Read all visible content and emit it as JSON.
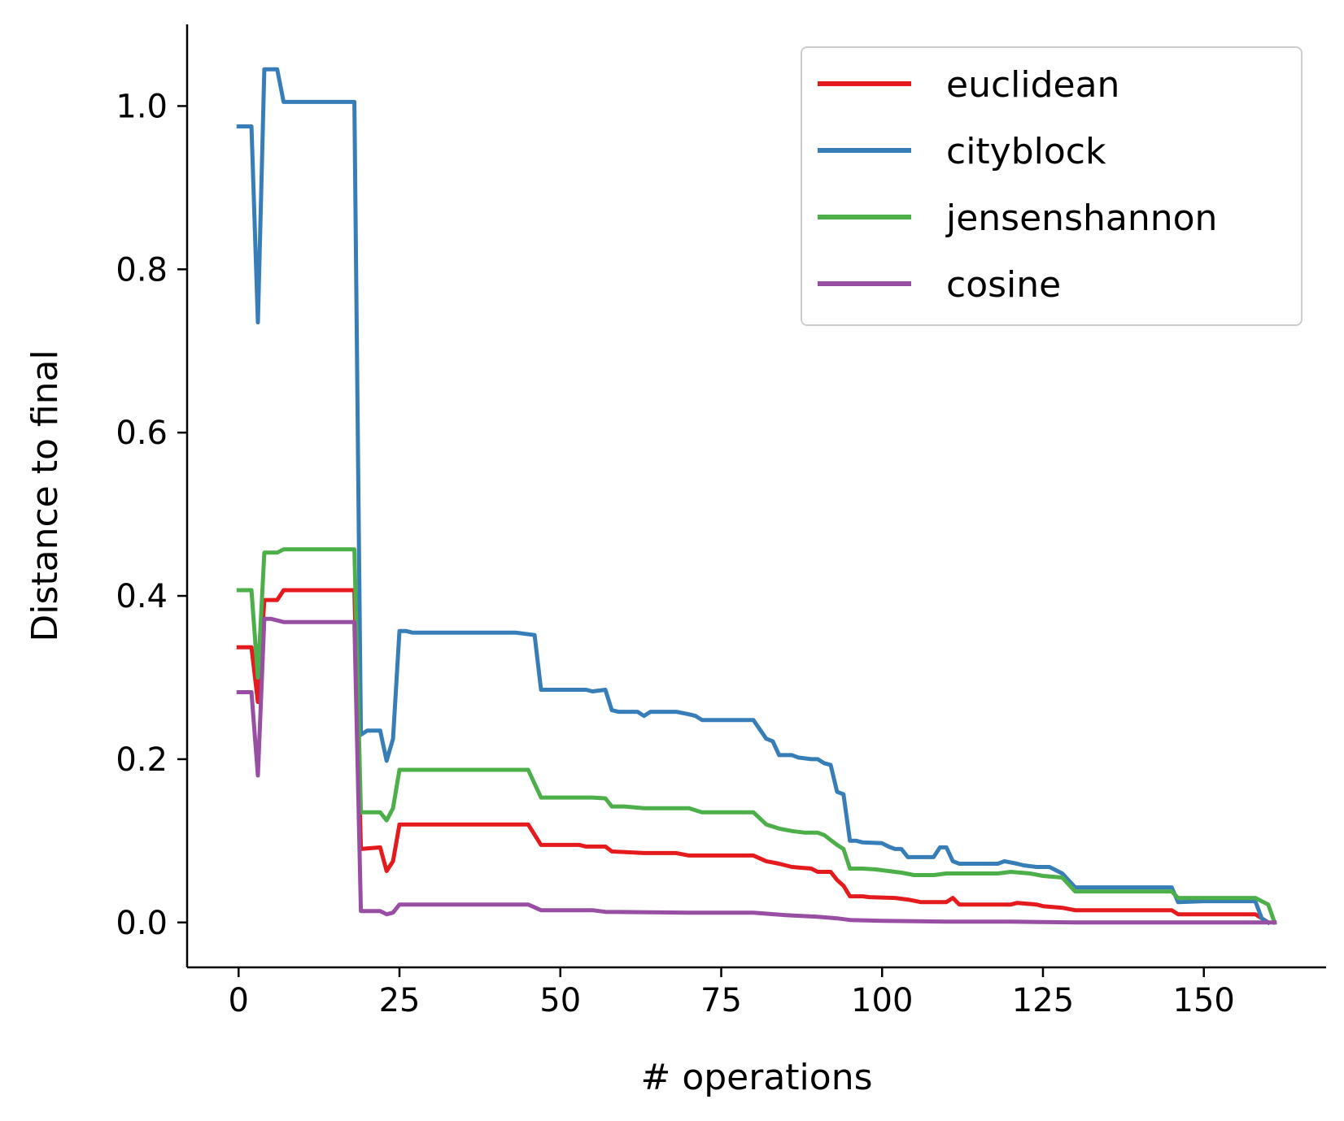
{
  "chart_data": {
    "type": "line",
    "title": "",
    "xlabel": "# operations",
    "ylabel": "Distance to final",
    "xlim": [
      -8,
      169
    ],
    "ylim": [
      -0.055,
      1.1
    ],
    "xticks": [
      0,
      25,
      50,
      75,
      100,
      125,
      150
    ],
    "yticks": [
      0.0,
      0.2,
      0.4,
      0.6,
      0.8,
      1.0
    ],
    "xtick_labels": [
      "0",
      "25",
      "50",
      "75",
      "100",
      "125",
      "150"
    ],
    "ytick_labels": [
      "0.0",
      "0.2",
      "0.4",
      "0.6",
      "0.8",
      "1.0"
    ],
    "legend_position": "top-right",
    "grid": false,
    "series": [
      {
        "name": "euclidean",
        "color": "#e41a1c",
        "points": [
          [
            0,
            0.337
          ],
          [
            2,
            0.337
          ],
          [
            3,
            0.27
          ],
          [
            4,
            0.395
          ],
          [
            6,
            0.395
          ],
          [
            7,
            0.407
          ],
          [
            18,
            0.407
          ],
          [
            19,
            0.09
          ],
          [
            22,
            0.092
          ],
          [
            23,
            0.063
          ],
          [
            24,
            0.075
          ],
          [
            25,
            0.12
          ],
          [
            45,
            0.12
          ],
          [
            47,
            0.095
          ],
          [
            53,
            0.095
          ],
          [
            54,
            0.093
          ],
          [
            57,
            0.093
          ],
          [
            58,
            0.087
          ],
          [
            63,
            0.085
          ],
          [
            68,
            0.085
          ],
          [
            70,
            0.082
          ],
          [
            80,
            0.082
          ],
          [
            82,
            0.075
          ],
          [
            84,
            0.072
          ],
          [
            86,
            0.068
          ],
          [
            89,
            0.066
          ],
          [
            90,
            0.062
          ],
          [
            92,
            0.062
          ],
          [
            93,
            0.052
          ],
          [
            94,
            0.045
          ],
          [
            95,
            0.032
          ],
          [
            97,
            0.032
          ],
          [
            98,
            0.031
          ],
          [
            102,
            0.03
          ],
          [
            104,
            0.028
          ],
          [
            106,
            0.025
          ],
          [
            110,
            0.025
          ],
          [
            111,
            0.03
          ],
          [
            112,
            0.022
          ],
          [
            120,
            0.022
          ],
          [
            121,
            0.024
          ],
          [
            124,
            0.022
          ],
          [
            125,
            0.02
          ],
          [
            128,
            0.018
          ],
          [
            130,
            0.015
          ],
          [
            145,
            0.015
          ],
          [
            146,
            0.01
          ],
          [
            150,
            0.01
          ],
          [
            152,
            0.01
          ],
          [
            158,
            0.01
          ],
          [
            159,
            0.005
          ],
          [
            160,
            0.0
          ]
        ]
      },
      {
        "name": "cityblock",
        "color": "#377eb8",
        "points": [
          [
            0,
            0.975
          ],
          [
            2,
            0.975
          ],
          [
            3,
            0.735
          ],
          [
            4,
            1.045
          ],
          [
            6,
            1.045
          ],
          [
            7,
            1.005
          ],
          [
            18,
            1.005
          ],
          [
            19,
            0.23
          ],
          [
            20,
            0.235
          ],
          [
            22,
            0.235
          ],
          [
            23,
            0.198
          ],
          [
            24,
            0.225
          ],
          [
            25,
            0.357
          ],
          [
            26,
            0.357
          ],
          [
            27,
            0.355
          ],
          [
            40,
            0.355
          ],
          [
            43,
            0.355
          ],
          [
            46,
            0.352
          ],
          [
            47,
            0.285
          ],
          [
            54,
            0.285
          ],
          [
            55,
            0.283
          ],
          [
            57,
            0.285
          ],
          [
            58,
            0.26
          ],
          [
            59,
            0.258
          ],
          [
            62,
            0.258
          ],
          [
            63,
            0.253
          ],
          [
            64,
            0.258
          ],
          [
            68,
            0.258
          ],
          [
            70,
            0.255
          ],
          [
            71,
            0.253
          ],
          [
            72,
            0.248
          ],
          [
            80,
            0.248
          ],
          [
            82,
            0.225
          ],
          [
            83,
            0.222
          ],
          [
            84,
            0.205
          ],
          [
            86,
            0.205
          ],
          [
            87,
            0.202
          ],
          [
            89,
            0.2
          ],
          [
            90,
            0.2
          ],
          [
            91,
            0.195
          ],
          [
            92,
            0.193
          ],
          [
            93,
            0.16
          ],
          [
            94,
            0.157
          ],
          [
            95,
            0.1
          ],
          [
            96,
            0.1
          ],
          [
            97,
            0.098
          ],
          [
            100,
            0.097
          ],
          [
            101,
            0.093
          ],
          [
            102,
            0.09
          ],
          [
            103,
            0.09
          ],
          [
            104,
            0.08
          ],
          [
            105,
            0.08
          ],
          [
            108,
            0.08
          ],
          [
            109,
            0.092
          ],
          [
            110,
            0.092
          ],
          [
            111,
            0.075
          ],
          [
            112,
            0.072
          ],
          [
            118,
            0.072
          ],
          [
            119,
            0.075
          ],
          [
            121,
            0.072
          ],
          [
            122,
            0.07
          ],
          [
            124,
            0.068
          ],
          [
            126,
            0.068
          ],
          [
            128,
            0.06
          ],
          [
            130,
            0.043
          ],
          [
            145,
            0.043
          ],
          [
            146,
            0.025
          ],
          [
            150,
            0.026
          ],
          [
            158,
            0.026
          ],
          [
            159,
            0.005
          ],
          [
            160,
            0.0
          ]
        ]
      },
      {
        "name": "jensenshannon",
        "color": "#4daf4a",
        "points": [
          [
            0,
            0.407
          ],
          [
            2,
            0.407
          ],
          [
            3,
            0.3
          ],
          [
            4,
            0.453
          ],
          [
            6,
            0.453
          ],
          [
            7,
            0.457
          ],
          [
            18,
            0.457
          ],
          [
            19,
            0.135
          ],
          [
            22,
            0.135
          ],
          [
            23,
            0.125
          ],
          [
            24,
            0.14
          ],
          [
            25,
            0.187
          ],
          [
            45,
            0.187
          ],
          [
            47,
            0.153
          ],
          [
            55,
            0.153
          ],
          [
            57,
            0.152
          ],
          [
            58,
            0.142
          ],
          [
            60,
            0.142
          ],
          [
            63,
            0.14
          ],
          [
            70,
            0.14
          ],
          [
            72,
            0.135
          ],
          [
            80,
            0.135
          ],
          [
            82,
            0.12
          ],
          [
            84,
            0.115
          ],
          [
            86,
            0.112
          ],
          [
            88,
            0.11
          ],
          [
            90,
            0.11
          ],
          [
            91,
            0.107
          ],
          [
            93,
            0.095
          ],
          [
            94,
            0.09
          ],
          [
            95,
            0.066
          ],
          [
            97,
            0.066
          ],
          [
            99,
            0.065
          ],
          [
            101,
            0.063
          ],
          [
            103,
            0.061
          ],
          [
            105,
            0.058
          ],
          [
            108,
            0.058
          ],
          [
            110,
            0.06
          ],
          [
            118,
            0.06
          ],
          [
            120,
            0.062
          ],
          [
            123,
            0.06
          ],
          [
            125,
            0.057
          ],
          [
            128,
            0.055
          ],
          [
            130,
            0.038
          ],
          [
            145,
            0.038
          ],
          [
            146,
            0.03
          ],
          [
            158,
            0.03
          ],
          [
            160,
            0.022
          ],
          [
            161,
            0.0
          ]
        ]
      },
      {
        "name": "cosine",
        "color": "#984ea3",
        "points": [
          [
            0,
            0.282
          ],
          [
            2,
            0.282
          ],
          [
            3,
            0.18
          ],
          [
            4,
            0.372
          ],
          [
            5,
            0.372
          ],
          [
            7,
            0.368
          ],
          [
            18,
            0.368
          ],
          [
            19,
            0.014
          ],
          [
            22,
            0.014
          ],
          [
            23,
            0.01
          ],
          [
            24,
            0.012
          ],
          [
            25,
            0.022
          ],
          [
            45,
            0.022
          ],
          [
            47,
            0.015
          ],
          [
            55,
            0.015
          ],
          [
            57,
            0.013
          ],
          [
            70,
            0.012
          ],
          [
            80,
            0.012
          ],
          [
            85,
            0.009
          ],
          [
            90,
            0.007
          ],
          [
            93,
            0.005
          ],
          [
            95,
            0.003
          ],
          [
            100,
            0.002
          ],
          [
            110,
            0.001
          ],
          [
            120,
            0.001
          ],
          [
            130,
            0.0
          ],
          [
            145,
            0.0
          ],
          [
            150,
            0.0
          ],
          [
            161,
            0.0
          ]
        ]
      }
    ]
  }
}
